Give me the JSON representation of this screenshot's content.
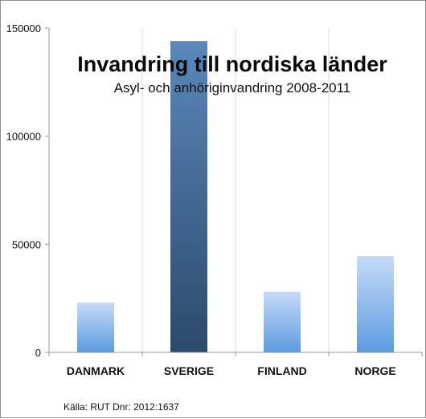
{
  "chart_data": {
    "type": "bar",
    "title": "Invandring till nordiska länder",
    "subtitle": "Asyl- och anhöriginvandring 2008-2011",
    "categories": [
      "DANMARK",
      "SVERIGE",
      "FINLAND",
      "NORGE"
    ],
    "values": [
      23000,
      144000,
      28000,
      44500
    ],
    "yticks": [
      0,
      50000,
      100000,
      150000
    ],
    "ylim": [
      0,
      150000
    ],
    "xlabel": "",
    "ylabel": "",
    "grid": "vertical category separators",
    "highlight_category": "SVERIGE",
    "colors": {
      "bar_top": "#c6dbf7",
      "bar_bottom": "#5c9be0",
      "highlight_top": "#5a88bb",
      "highlight_bottom": "#2c4a6b",
      "grid": "#d9d9d9",
      "axis": "#9a9a9a"
    },
    "source": "Källa: RUT Dnr: 2012:1637"
  }
}
